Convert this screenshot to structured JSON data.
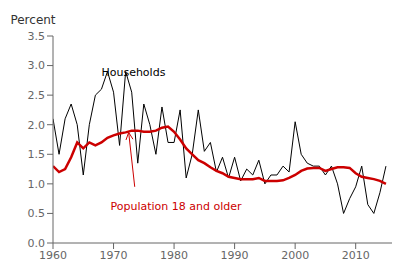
{
  "chart_data": {
    "type": "line",
    "y_label": "Percent",
    "x": [
      1960,
      1961,
      1962,
      1963,
      1964,
      1965,
      1966,
      1967,
      1968,
      1969,
      1970,
      1971,
      1972,
      1973,
      1974,
      1975,
      1976,
      1977,
      1978,
      1979,
      1980,
      1981,
      1982,
      1983,
      1984,
      1985,
      1986,
      1987,
      1988,
      1989,
      1990,
      1991,
      1992,
      1993,
      1994,
      1995,
      1996,
      1997,
      1998,
      1999,
      2000,
      2001,
      2002,
      2003,
      2004,
      2005,
      2006,
      2007,
      2008,
      2009,
      2010,
      2011,
      2012,
      2013,
      2014,
      2015
    ],
    "series": [
      {
        "name": "Households",
        "color": "#000000",
        "values": [
          2.1,
          1.5,
          2.1,
          2.35,
          2.0,
          1.15,
          2.0,
          2.5,
          2.6,
          2.9,
          2.55,
          1.65,
          2.9,
          2.55,
          1.35,
          2.35,
          2.0,
          1.5,
          2.3,
          1.7,
          1.7,
          2.25,
          1.1,
          1.5,
          2.25,
          1.55,
          1.7,
          1.2,
          1.45,
          1.1,
          1.45,
          1.05,
          1.25,
          1.15,
          1.4,
          1.0,
          1.15,
          1.15,
          1.3,
          1.2,
          2.05,
          1.5,
          1.35,
          1.3,
          1.3,
          1.15,
          1.3,
          1.0,
          0.5,
          0.75,
          0.95,
          1.3,
          0.65,
          0.5,
          0.85,
          1.3
        ]
      },
      {
        "name": "Population 18 and older",
        "color": "#cc0000",
        "values": [
          1.3,
          1.2,
          1.25,
          1.45,
          1.7,
          1.6,
          1.7,
          1.65,
          1.7,
          1.78,
          1.82,
          1.85,
          1.87,
          1.9,
          1.9,
          1.88,
          1.88,
          1.9,
          1.95,
          1.97,
          1.88,
          1.75,
          1.6,
          1.5,
          1.4,
          1.35,
          1.28,
          1.22,
          1.18,
          1.12,
          1.1,
          1.08,
          1.08,
          1.08,
          1.1,
          1.05,
          1.05,
          1.05,
          1.06,
          1.1,
          1.15,
          1.22,
          1.26,
          1.27,
          1.27,
          1.22,
          1.25,
          1.28,
          1.28,
          1.27,
          1.18,
          1.12,
          1.1,
          1.08,
          1.05,
          1.0
        ]
      }
    ],
    "xlim": [
      1960,
      2016
    ],
    "xticks": [
      1960,
      1970,
      1980,
      1990,
      2000,
      2010
    ],
    "ylim": [
      0.0,
      3.5
    ],
    "yticks": [
      {
        "value": 0.0,
        "label": "0.0"
      },
      0.5,
      {
        "value": 1.0,
        "label": "1.0"
      },
      1.5,
      {
        "value": 2.0,
        "label": "2.0"
      },
      2.5,
      {
        "value": 3.0,
        "label": "3.0"
      },
      3.5
    ],
    "grid": false,
    "annotations": [
      {
        "text": "Households",
        "x": 1968,
        "y": 2.98,
        "color": "#000000"
      },
      {
        "text": "Population 18 and older",
        "x": 1969.5,
        "y": 0.72,
        "color": "#cc0000"
      },
      {
        "x": 1973.5,
        "y": 0.95,
        "arrow_to": [
          1972.5,
          1.87
        ],
        "color": "#cc0000"
      }
    ]
  }
}
